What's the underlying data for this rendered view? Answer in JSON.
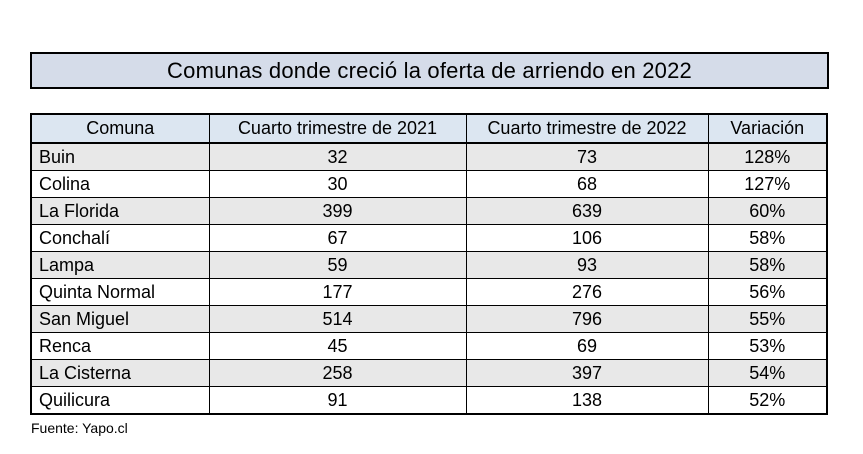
{
  "title": {
    "text": "Comunas donde creció la oferta de arriendo en 2022"
  },
  "footer": {
    "source": "Fuente: Yapo.cl"
  },
  "colors": {
    "title_fill": "#D5DCE9",
    "header_fill": "#DCE6F1",
    "row_stripe_fill": "#E8E8E8",
    "border": "#000000",
    "background": "#FFFFFF"
  },
  "chart_data": {
    "type": "table",
    "title": "Comunas donde creció la oferta de arriendo en 2022",
    "columns": [
      "Comuna",
      "Cuarto trimestre de 2021",
      "Cuarto trimestre de 2022",
      "Variación"
    ],
    "rows": [
      [
        "Buin",
        32,
        73,
        "128%"
      ],
      [
        "Colina",
        30,
        68,
        "127%"
      ],
      [
        "La Florida",
        399,
        639,
        "60%"
      ],
      [
        "Conchalí",
        67,
        106,
        "58%"
      ],
      [
        "Lampa",
        59,
        93,
        "58%"
      ],
      [
        "Quinta Normal",
        177,
        276,
        "56%"
      ],
      [
        "San Miguel",
        514,
        796,
        "55%"
      ],
      [
        "Renca",
        45,
        69,
        "53%"
      ],
      [
        "La Cisterna",
        258,
        397,
        "54%"
      ],
      [
        "Quilicura",
        91,
        138,
        "52%"
      ]
    ],
    "source": "Fuente: Yapo.cl",
    "layout": {
      "zebra_striping": true,
      "first_column_align": "left",
      "other_columns_align": "center",
      "header_align": "center"
    }
  }
}
